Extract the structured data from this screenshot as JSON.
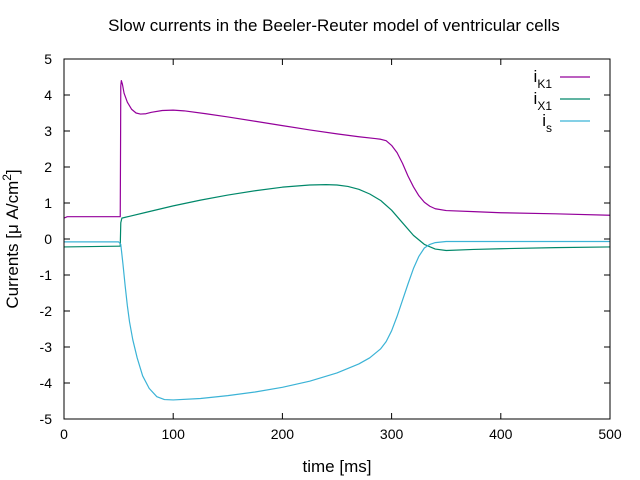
{
  "chart_data": {
    "type": "line",
    "title": "Slow currents in the Beeler-Reuter model of ventricular cells",
    "xlabel": "time [ms]",
    "ylabel": {
      "main": "Currents [μ A/cm",
      "sup": "2",
      "tail": "]"
    },
    "xlim": [
      0,
      500
    ],
    "ylim": [
      -5,
      5
    ],
    "xticks": [
      0,
      100,
      200,
      300,
      400,
      500
    ],
    "yticks": [
      -5,
      -4,
      -3,
      -2,
      -1,
      0,
      1,
      2,
      3,
      4,
      5
    ],
    "grid": false,
    "legend_position": "top-right",
    "series": [
      {
        "name": "iK1",
        "legend": {
          "base": "i",
          "sub": "K1"
        },
        "color": "#94009b",
        "points": [
          [
            0,
            0.58
          ],
          [
            3,
            0.62
          ],
          [
            50,
            0.62
          ],
          [
            51.5,
            0.62
          ],
          [
            51.8,
            2.7
          ],
          [
            52,
            4.25
          ],
          [
            52.5,
            4.4
          ],
          [
            53.5,
            4.3
          ],
          [
            55,
            4.05
          ],
          [
            58,
            3.8
          ],
          [
            62,
            3.6
          ],
          [
            66,
            3.5
          ],
          [
            70,
            3.47
          ],
          [
            75,
            3.48
          ],
          [
            80,
            3.52
          ],
          [
            90,
            3.57
          ],
          [
            100,
            3.58
          ],
          [
            110,
            3.56
          ],
          [
            130,
            3.48
          ],
          [
            150,
            3.39
          ],
          [
            175,
            3.27
          ],
          [
            200,
            3.15
          ],
          [
            225,
            3.03
          ],
          [
            250,
            2.92
          ],
          [
            270,
            2.84
          ],
          [
            285,
            2.79
          ],
          [
            290,
            2.77
          ],
          [
            295,
            2.73
          ],
          [
            300,
            2.6
          ],
          [
            305,
            2.4
          ],
          [
            310,
            2.1
          ],
          [
            315,
            1.75
          ],
          [
            320,
            1.45
          ],
          [
            325,
            1.2
          ],
          [
            330,
            1.02
          ],
          [
            335,
            0.91
          ],
          [
            340,
            0.84
          ],
          [
            350,
            0.79
          ],
          [
            375,
            0.76
          ],
          [
            400,
            0.73
          ],
          [
            450,
            0.7
          ],
          [
            500,
            0.66
          ]
        ]
      },
      {
        "name": "iX1",
        "legend": {
          "base": "i",
          "sub": "X1"
        },
        "color": "#00886a",
        "points": [
          [
            0,
            -0.22
          ],
          [
            50,
            -0.2
          ],
          [
            51.5,
            -0.2
          ],
          [
            52,
            0.45
          ],
          [
            53,
            0.58
          ],
          [
            60,
            0.63
          ],
          [
            75,
            0.74
          ],
          [
            100,
            0.92
          ],
          [
            125,
            1.08
          ],
          [
            150,
            1.22
          ],
          [
            175,
            1.34
          ],
          [
            200,
            1.44
          ],
          [
            225,
            1.5
          ],
          [
            240,
            1.51
          ],
          [
            250,
            1.5
          ],
          [
            260,
            1.46
          ],
          [
            270,
            1.38
          ],
          [
            280,
            1.25
          ],
          [
            290,
            1.07
          ],
          [
            300,
            0.8
          ],
          [
            310,
            0.45
          ],
          [
            320,
            0.1
          ],
          [
            330,
            -0.15
          ],
          [
            340,
            -0.28
          ],
          [
            350,
            -0.32
          ],
          [
            375,
            -0.29
          ],
          [
            400,
            -0.27
          ],
          [
            450,
            -0.24
          ],
          [
            500,
            -0.22
          ]
        ]
      },
      {
        "name": "is",
        "legend": {
          "base": "i",
          "sub": "s"
        },
        "color": "#3bb3d6",
        "points": [
          [
            0,
            -0.08
          ],
          [
            50,
            -0.08
          ],
          [
            52,
            -0.15
          ],
          [
            54,
            -0.7
          ],
          [
            56,
            -1.3
          ],
          [
            58,
            -1.85
          ],
          [
            60,
            -2.3
          ],
          [
            63,
            -2.8
          ],
          [
            67,
            -3.3
          ],
          [
            72,
            -3.8
          ],
          [
            78,
            -4.15
          ],
          [
            85,
            -4.38
          ],
          [
            92,
            -4.46
          ],
          [
            100,
            -4.47
          ],
          [
            125,
            -4.43
          ],
          [
            150,
            -4.35
          ],
          [
            175,
            -4.25
          ],
          [
            200,
            -4.12
          ],
          [
            225,
            -3.95
          ],
          [
            250,
            -3.72
          ],
          [
            270,
            -3.47
          ],
          [
            280,
            -3.3
          ],
          [
            290,
            -3.05
          ],
          [
            295,
            -2.85
          ],
          [
            300,
            -2.55
          ],
          [
            305,
            -2.15
          ],
          [
            310,
            -1.7
          ],
          [
            315,
            -1.25
          ],
          [
            320,
            -0.82
          ],
          [
            325,
            -0.48
          ],
          [
            330,
            -0.25
          ],
          [
            335,
            -0.15
          ],
          [
            340,
            -0.1
          ],
          [
            350,
            -0.07
          ],
          [
            400,
            -0.07
          ],
          [
            500,
            -0.07
          ]
        ]
      }
    ]
  }
}
